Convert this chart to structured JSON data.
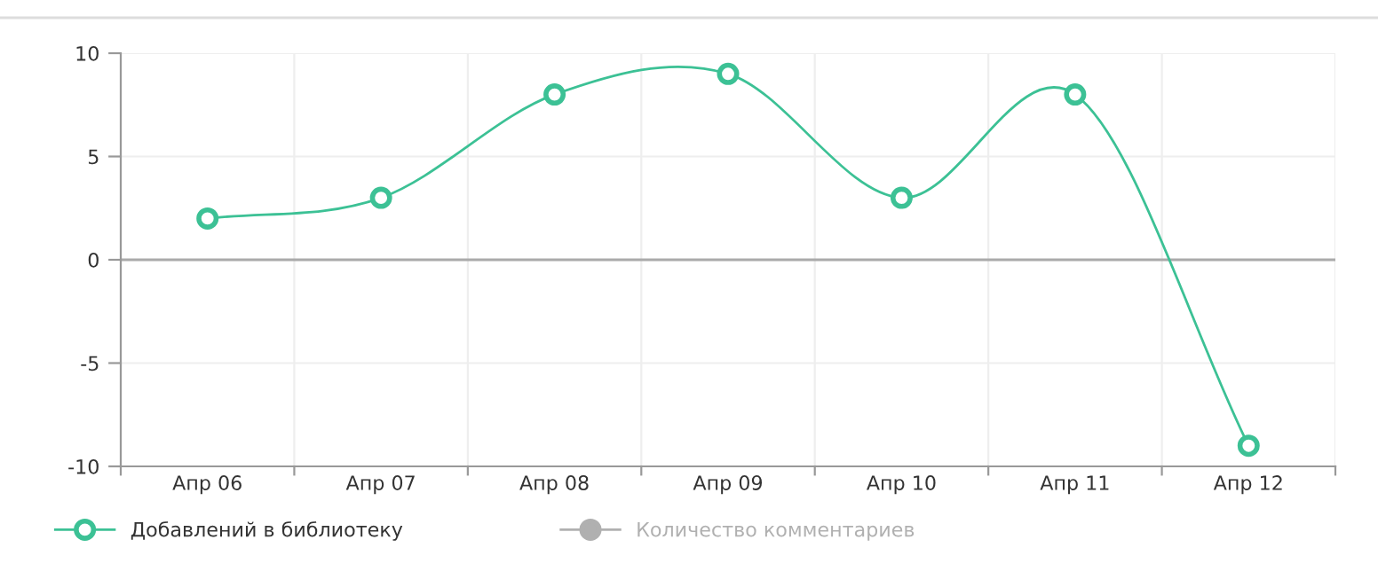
{
  "chart_data": {
    "type": "line",
    "categories": [
      "Апр 06",
      "Апр 07",
      "Апр 08",
      "Апр 09",
      "Апр 10",
      "Апр 11",
      "Апр 12"
    ],
    "series": [
      {
        "name": "Добавлений в библиотеку",
        "color": "#3cc195",
        "values": [
          2,
          3,
          8,
          9,
          3,
          8,
          -9
        ]
      },
      {
        "name": "Количество комментариев",
        "color": "#b0b0b0",
        "values": [
          null,
          null,
          null,
          null,
          null,
          null,
          null
        ]
      }
    ],
    "ylim": [
      -10,
      10
    ],
    "yticks": [
      -10,
      -5,
      0,
      5,
      10
    ],
    "grid": true,
    "legend": "bottom",
    "marker": "circle",
    "line_style": "solid",
    "ref_lines": [
      {
        "axis": "y",
        "value": 0,
        "color": "#aaaaaa"
      }
    ]
  }
}
